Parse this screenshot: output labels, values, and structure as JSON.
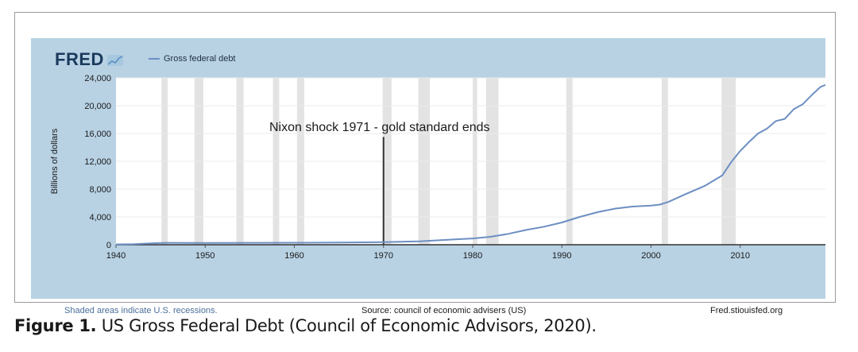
{
  "brand": {
    "name": "FRED",
    "icon": "line-chart-icon"
  },
  "legend": {
    "label": "Gross federal debt",
    "color": "#6d8fc3"
  },
  "footer": {
    "left": "Shaded areas indicate U.S. recessions.",
    "middle": "Source: council of economic advisers (US)",
    "right": "Fred.stiouisfed.org"
  },
  "caption": {
    "label": "Figure 1.",
    "text": " US Gross Federal Debt (Council of Economic Advisors, 2020)."
  },
  "chart_data": {
    "type": "line",
    "title": "",
    "xlabel": "",
    "ylabel": "Billions of dollars",
    "xlim": [
      1940,
      2020
    ],
    "ylim": [
      0,
      24000
    ],
    "xticks": [
      1940,
      1950,
      1960,
      1970,
      1980,
      1990,
      2000,
      2010
    ],
    "yticks": [
      0,
      4000,
      8000,
      12000,
      16000,
      20000,
      24000
    ],
    "ytick_labels": [
      "0",
      "4,000",
      "8,000",
      "12,000",
      "16,000",
      "20,000",
      "24,000"
    ],
    "grid": true,
    "legend_position": "top-left",
    "recessions": [
      [
        1945.1,
        1945.8
      ],
      [
        1948.8,
        1949.8
      ],
      [
        1953.5,
        1954.3
      ],
      [
        1957.6,
        1958.3
      ],
      [
        1960.3,
        1961.1
      ],
      [
        1969.9,
        1970.9
      ],
      [
        1973.9,
        1975.2
      ],
      [
        1980.0,
        1980.5
      ],
      [
        1981.5,
        1982.9
      ],
      [
        1990.5,
        1991.2
      ],
      [
        2001.2,
        2001.9
      ],
      [
        2007.9,
        2009.5
      ]
    ],
    "annotation": {
      "text": "Nixon shock 1971 - gold standard ends",
      "x": 1970,
      "y_top": 15500
    },
    "series": [
      {
        "name": "Gross federal debt",
        "color": "#6d8fc3",
        "x": [
          1940,
          1942,
          1944,
          1945,
          1946,
          1950,
          1955,
          1960,
          1965,
          1970,
          1972,
          1974,
          1976,
          1978,
          1980,
          1982,
          1984,
          1986,
          1988,
          1990,
          1992,
          1994,
          1996,
          1998,
          2000,
          2001,
          2002,
          2004,
          2006,
          2008,
          2009,
          2010,
          2011,
          2012,
          2013,
          2014,
          2015,
          2016,
          2017,
          2018,
          2019,
          2020
        ],
        "values": [
          50,
          80,
          200,
          260,
          270,
          260,
          270,
          290,
          320,
          380,
          430,
          480,
          630,
          780,
          900,
          1140,
          1560,
          2120,
          2600,
          3200,
          4000,
          4690,
          5200,
          5500,
          5630,
          5770,
          6200,
          7350,
          8450,
          9990,
          11900,
          13500,
          14800,
          16000,
          16700,
          17800,
          18100,
          19500,
          20200,
          21500,
          22700,
          23200
        ]
      }
    ]
  }
}
